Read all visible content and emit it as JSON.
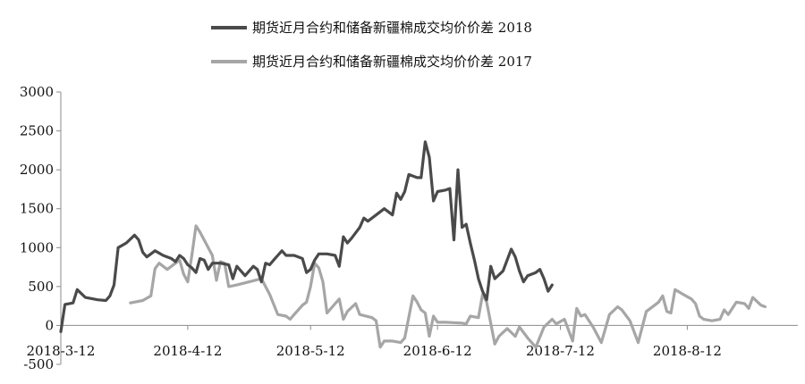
{
  "colors": {
    "series_2018": "#4a4a4a",
    "series_2017": "#a6a6a6",
    "axis": "#8c8c8c"
  },
  "chart_data": {
    "type": "line",
    "title": "",
    "xlabel": "",
    "ylabel": "",
    "ylim": [
      -500,
      3000
    ],
    "yticks": [
      -500,
      0,
      500,
      1000,
      1500,
      2000,
      2500,
      3000
    ],
    "x_axis": {
      "type": "date",
      "start": "2018-3-12",
      "end": "2018-9-8"
    },
    "x_tick_labels": [
      "2018-3-12",
      "2018-4-12",
      "2018-5-12",
      "2018-6-12",
      "2018-7-12",
      "2018-8-12"
    ],
    "grid": false,
    "legend": "top-center",
    "series": [
      {
        "name": "期货近月合约和储备新疆棉成交均价价差 2018",
        "color": "#4a4a4a",
        "points": [
          [
            "2018-3-12",
            -80
          ],
          [
            "2018-3-13",
            270
          ],
          [
            "2018-3-15",
            290
          ],
          [
            "2018-3-16",
            460
          ],
          [
            "2018-3-18",
            360
          ],
          [
            "2018-3-21",
            330
          ],
          [
            "2018-3-23",
            320
          ],
          [
            "2018-3-24",
            380
          ],
          [
            "2018-3-25",
            520
          ],
          [
            "2018-3-26",
            1000
          ],
          [
            "2018-3-28",
            1060
          ],
          [
            "2018-3-30",
            1160
          ],
          [
            "2018-3-31",
            1100
          ],
          [
            "2018-4-1",
            940
          ],
          [
            "2018-4-2",
            880
          ],
          [
            "2018-4-3",
            920
          ],
          [
            "2018-4-4",
            960
          ],
          [
            "2018-4-6",
            900
          ],
          [
            "2018-4-8",
            860
          ],
          [
            "2018-4-9",
            820
          ],
          [
            "2018-4-10",
            900
          ],
          [
            "2018-4-11",
            860
          ],
          [
            "2018-4-12",
            780
          ],
          [
            "2018-4-13",
            740
          ],
          [
            "2018-4-14",
            680
          ],
          [
            "2018-4-15",
            860
          ],
          [
            "2018-4-16",
            840
          ],
          [
            "2018-4-17",
            720
          ],
          [
            "2018-4-18",
            800
          ],
          [
            "2018-4-20",
            800
          ],
          [
            "2018-4-22",
            780
          ],
          [
            "2018-4-23",
            600
          ],
          [
            "2018-4-24",
            760
          ],
          [
            "2018-4-25",
            700
          ],
          [
            "2018-4-26",
            640
          ],
          [
            "2018-4-28",
            760
          ],
          [
            "2018-4-29",
            720
          ],
          [
            "2018-4-30",
            560
          ],
          [
            "2018-5-1",
            800
          ],
          [
            "2018-5-2",
            780
          ],
          [
            "2018-5-3",
            840
          ],
          [
            "2018-5-4",
            900
          ],
          [
            "2018-5-5",
            960
          ],
          [
            "2018-5-6",
            900
          ],
          [
            "2018-5-8",
            900
          ],
          [
            "2018-5-10",
            860
          ],
          [
            "2018-5-11",
            680
          ],
          [
            "2018-5-12",
            720
          ],
          [
            "2018-5-13",
            840
          ],
          [
            "2018-5-14",
            920
          ],
          [
            "2018-5-16",
            920
          ],
          [
            "2018-5-18",
            900
          ],
          [
            "2018-5-19",
            760
          ],
          [
            "2018-5-20",
            1140
          ],
          [
            "2018-5-21",
            1060
          ],
          [
            "2018-5-22",
            1120
          ],
          [
            "2018-5-24",
            1260
          ],
          [
            "2018-5-25",
            1380
          ],
          [
            "2018-5-26",
            1340
          ],
          [
            "2018-5-27",
            1380
          ],
          [
            "2018-5-28",
            1420
          ],
          [
            "2018-5-30",
            1500
          ],
          [
            "2018-6-1",
            1420
          ],
          [
            "2018-6-2",
            1700
          ],
          [
            "2018-6-3",
            1620
          ],
          [
            "2018-6-4",
            1720
          ],
          [
            "2018-6-5",
            1940
          ],
          [
            "2018-6-7",
            1900
          ],
          [
            "2018-6-8",
            1900
          ],
          [
            "2018-6-9",
            2360
          ],
          [
            "2018-6-10",
            2160
          ],
          [
            "2018-6-11",
            1600
          ],
          [
            "2018-6-12",
            1720
          ],
          [
            "2018-6-14",
            1740
          ],
          [
            "2018-6-15",
            1760
          ],
          [
            "2018-6-16",
            1100
          ],
          [
            "2018-6-17",
            2000
          ],
          [
            "2018-6-18",
            1260
          ],
          [
            "2018-6-19",
            1300
          ],
          [
            "2018-6-20",
            1060
          ],
          [
            "2018-6-21",
            840
          ],
          [
            "2018-6-22",
            600
          ],
          [
            "2018-6-23",
            440
          ],
          [
            "2018-6-24",
            330
          ],
          [
            "2018-6-25",
            760
          ],
          [
            "2018-6-26",
            600
          ],
          [
            "2018-6-28",
            700
          ],
          [
            "2018-6-29",
            840
          ],
          [
            "2018-6-30",
            980
          ],
          [
            "2018-7-1",
            880
          ],
          [
            "2018-7-2",
            700
          ],
          [
            "2018-7-3",
            560
          ],
          [
            "2018-7-4",
            640
          ],
          [
            "2018-7-6",
            680
          ],
          [
            "2018-7-7",
            720
          ],
          [
            "2018-7-8",
            600
          ],
          [
            "2018-7-9",
            440
          ],
          [
            "2018-7-10",
            520
          ]
        ]
      },
      {
        "name": "期货近月合约和储备新疆棉成交均价价差 2017",
        "color": "#a6a6a6",
        "points": [
          [
            "2018-3-29",
            290
          ],
          [
            "2018-4-1",
            320
          ],
          [
            "2018-4-3",
            380
          ],
          [
            "2018-4-4",
            730
          ],
          [
            "2018-4-5",
            800
          ],
          [
            "2018-4-6",
            760
          ],
          [
            "2018-4-7",
            720
          ],
          [
            "2018-4-9",
            800
          ],
          [
            "2018-4-10",
            840
          ],
          [
            "2018-4-11",
            660
          ],
          [
            "2018-4-12",
            560
          ],
          [
            "2018-4-13",
            900
          ],
          [
            "2018-4-14",
            1280
          ],
          [
            "2018-4-15",
            1200
          ],
          [
            "2018-4-16",
            1100
          ],
          [
            "2018-4-18",
            900
          ],
          [
            "2018-4-19",
            580
          ],
          [
            "2018-4-20",
            820
          ],
          [
            "2018-4-21",
            800
          ],
          [
            "2018-4-22",
            500
          ],
          [
            "2018-4-24",
            520
          ],
          [
            "2018-4-27",
            560
          ],
          [
            "2018-4-30",
            600
          ],
          [
            "2018-5-2",
            400
          ],
          [
            "2018-5-4",
            140
          ],
          [
            "2018-5-6",
            120
          ],
          [
            "2018-5-7",
            80
          ],
          [
            "2018-5-8",
            140
          ],
          [
            "2018-5-10",
            260
          ],
          [
            "2018-5-11",
            300
          ],
          [
            "2018-5-12",
            500
          ],
          [
            "2018-5-13",
            800
          ],
          [
            "2018-5-14",
            740
          ],
          [
            "2018-5-15",
            560
          ],
          [
            "2018-5-16",
            160
          ],
          [
            "2018-5-18",
            280
          ],
          [
            "2018-5-19",
            340
          ],
          [
            "2018-5-20",
            80
          ],
          [
            "2018-5-21",
            180
          ],
          [
            "2018-5-23",
            280
          ],
          [
            "2018-5-24",
            140
          ],
          [
            "2018-5-27",
            100
          ],
          [
            "2018-5-28",
            60
          ],
          [
            "2018-5-29",
            -280
          ],
          [
            "2018-5-30",
            -200
          ],
          [
            "2018-6-1",
            -200
          ],
          [
            "2018-6-3",
            -220
          ],
          [
            "2018-6-4",
            -160
          ],
          [
            "2018-6-6",
            380
          ],
          [
            "2018-6-7",
            300
          ],
          [
            "2018-6-8",
            200
          ],
          [
            "2018-6-9",
            160
          ],
          [
            "2018-6-10",
            -140
          ],
          [
            "2018-6-11",
            120
          ],
          [
            "2018-6-12",
            40
          ],
          [
            "2018-6-14",
            40
          ],
          [
            "2018-6-18",
            30
          ],
          [
            "2018-6-19",
            20
          ],
          [
            "2018-6-20",
            120
          ],
          [
            "2018-6-22",
            100
          ],
          [
            "2018-6-23",
            400
          ],
          [
            "2018-6-24",
            300
          ],
          [
            "2018-6-26",
            -240
          ],
          [
            "2018-6-27",
            -140
          ],
          [
            "2018-6-29",
            -40
          ],
          [
            "2018-7-1",
            -140
          ],
          [
            "2018-7-2",
            -20
          ],
          [
            "2018-7-4",
            -160
          ],
          [
            "2018-7-6",
            -280
          ],
          [
            "2018-7-8",
            -20
          ],
          [
            "2018-7-10",
            80
          ],
          [
            "2018-7-11",
            20
          ],
          [
            "2018-7-13",
            80
          ],
          [
            "2018-7-15",
            -200
          ],
          [
            "2018-7-16",
            220
          ],
          [
            "2018-7-17",
            120
          ],
          [
            "2018-7-18",
            140
          ],
          [
            "2018-7-20",
            -20
          ],
          [
            "2018-7-22",
            -220
          ],
          [
            "2018-7-24",
            140
          ],
          [
            "2018-7-26",
            240
          ],
          [
            "2018-7-27",
            200
          ],
          [
            "2018-7-29",
            60
          ],
          [
            "2018-7-31",
            -220
          ],
          [
            "2018-8-2",
            180
          ],
          [
            "2018-8-3",
            220
          ],
          [
            "2018-8-5",
            300
          ],
          [
            "2018-8-6",
            380
          ],
          [
            "2018-8-7",
            180
          ],
          [
            "2018-8-8",
            160
          ],
          [
            "2018-8-9",
            460
          ],
          [
            "2018-8-11",
            400
          ],
          [
            "2018-8-13",
            340
          ],
          [
            "2018-8-14",
            280
          ],
          [
            "2018-8-15",
            120
          ],
          [
            "2018-8-16",
            80
          ],
          [
            "2018-8-18",
            60
          ],
          [
            "2018-8-20",
            80
          ],
          [
            "2018-8-21",
            200
          ],
          [
            "2018-8-22",
            140
          ],
          [
            "2018-8-24",
            300
          ],
          [
            "2018-8-26",
            280
          ],
          [
            "2018-8-27",
            220
          ],
          [
            "2018-8-28",
            360
          ],
          [
            "2018-8-30",
            260
          ],
          [
            "2018-8-31",
            240
          ]
        ]
      }
    ]
  }
}
